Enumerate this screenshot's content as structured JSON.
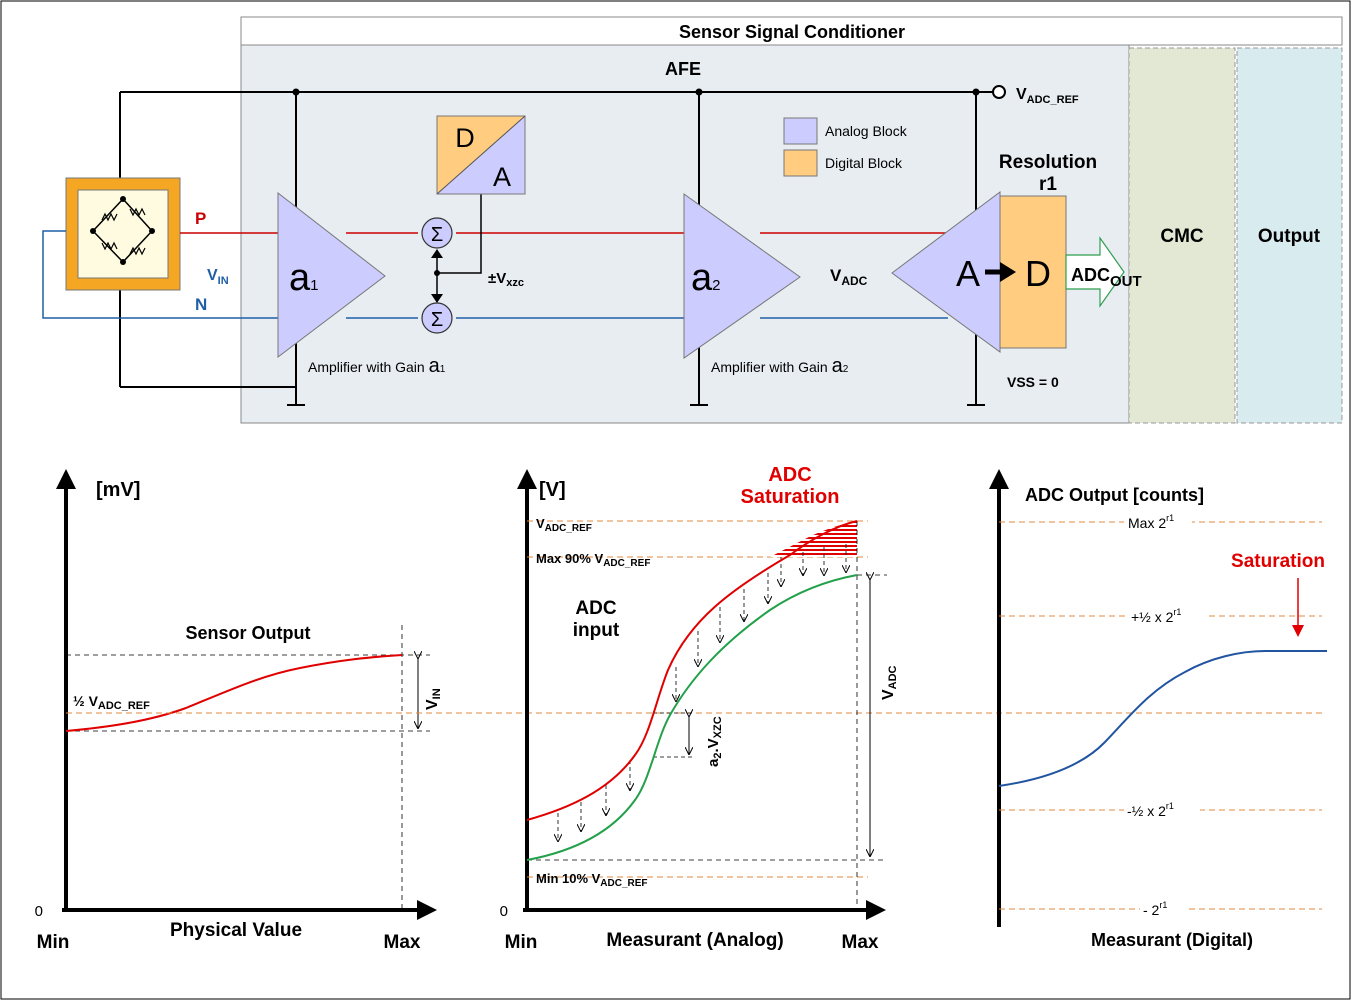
{
  "block": {
    "title": "Sensor Signal Conditioner",
    "afe": "AFE",
    "cmc": "CMC",
    "output": "Output",
    "vadc_ref": {
      "main": "V",
      "sub": "ADC_REF"
    },
    "dac": {
      "d": "D",
      "a": "A"
    },
    "legend": {
      "analog": "Analog Block",
      "digital": "Digital Block"
    },
    "colors": {
      "analog": "#ccccff",
      "digital": "#ffcc80",
      "afe_bg": "#e8edf2",
      "cmc_bg": "#e3e8d4",
      "output_bg": "#d8ecf0",
      "p_line": "#cc0000",
      "n_line": "#1f5fa8"
    },
    "p_label": "P",
    "n_label": "N",
    "vin": {
      "main": "V",
      "sub": "IN"
    },
    "amp1": {
      "symbol": "a",
      "sub": "1",
      "caption": "Amplifier with Gain ",
      "cap_sym": "a",
      "cap_sub": "1"
    },
    "amp2": {
      "symbol": "a",
      "sub": "2",
      "caption": "Amplifier with Gain ",
      "cap_sym": "a",
      "cap_sub": "2"
    },
    "sigma": "Σ",
    "vxzc": {
      "main": "±V",
      "sub": "xzc"
    },
    "vadc": {
      "main": "V",
      "sub": "ADC"
    },
    "resolution": {
      "line1": "Resolution",
      "line2": "r1"
    },
    "adc": {
      "a": "A",
      "d": "D",
      "out_main": "ADC",
      "out_sub": "OUT"
    },
    "vss": "VSS = 0"
  },
  "graph1": {
    "ylabel": "[mV]",
    "zero": "0",
    "xmin": "Min",
    "xmax": "Max",
    "xlabel": "Physical Value",
    "title": "Sensor Output",
    "half_ref": {
      "pre": "½ V",
      "sub": "ADC_REF"
    },
    "vin": {
      "main": "V",
      "sub": "IN"
    }
  },
  "graph2": {
    "ylabel": "[V]",
    "zero": "0",
    "xmin": "Min",
    "xmax": "Max",
    "xlabel": "Measurant (Analog)",
    "saturation": {
      "line1": "ADC",
      "line2": "Saturation"
    },
    "adc_input": {
      "line1": "ADC",
      "line2": "input"
    },
    "vadc_ref": {
      "main": "V",
      "sub": "ADC_REF"
    },
    "max90": {
      "pre": "Max 90% V",
      "sub": "ADC_REF"
    },
    "min10": {
      "pre": "Min 10% V",
      "sub": "ADC_REF"
    },
    "a2vxzc": {
      "main": "a",
      "sub2": "2",
      "mid": ".V",
      "sub": "XZC"
    },
    "vadc": {
      "main": "V",
      "sub": "ADC"
    }
  },
  "graph3": {
    "ylabel": "ADC Output [counts]",
    "xlabel": "Measurant (Digital)",
    "saturation": "Saturation",
    "max": {
      "pre": "Max 2",
      "sup": "r1"
    },
    "plus_half": {
      "pre": "+½ x 2",
      "sup": "r1"
    },
    "minus_half": {
      "pre": "-½ x 2",
      "sup": "r1"
    },
    "minus": {
      "pre": "- 2",
      "sup": "r1"
    }
  }
}
